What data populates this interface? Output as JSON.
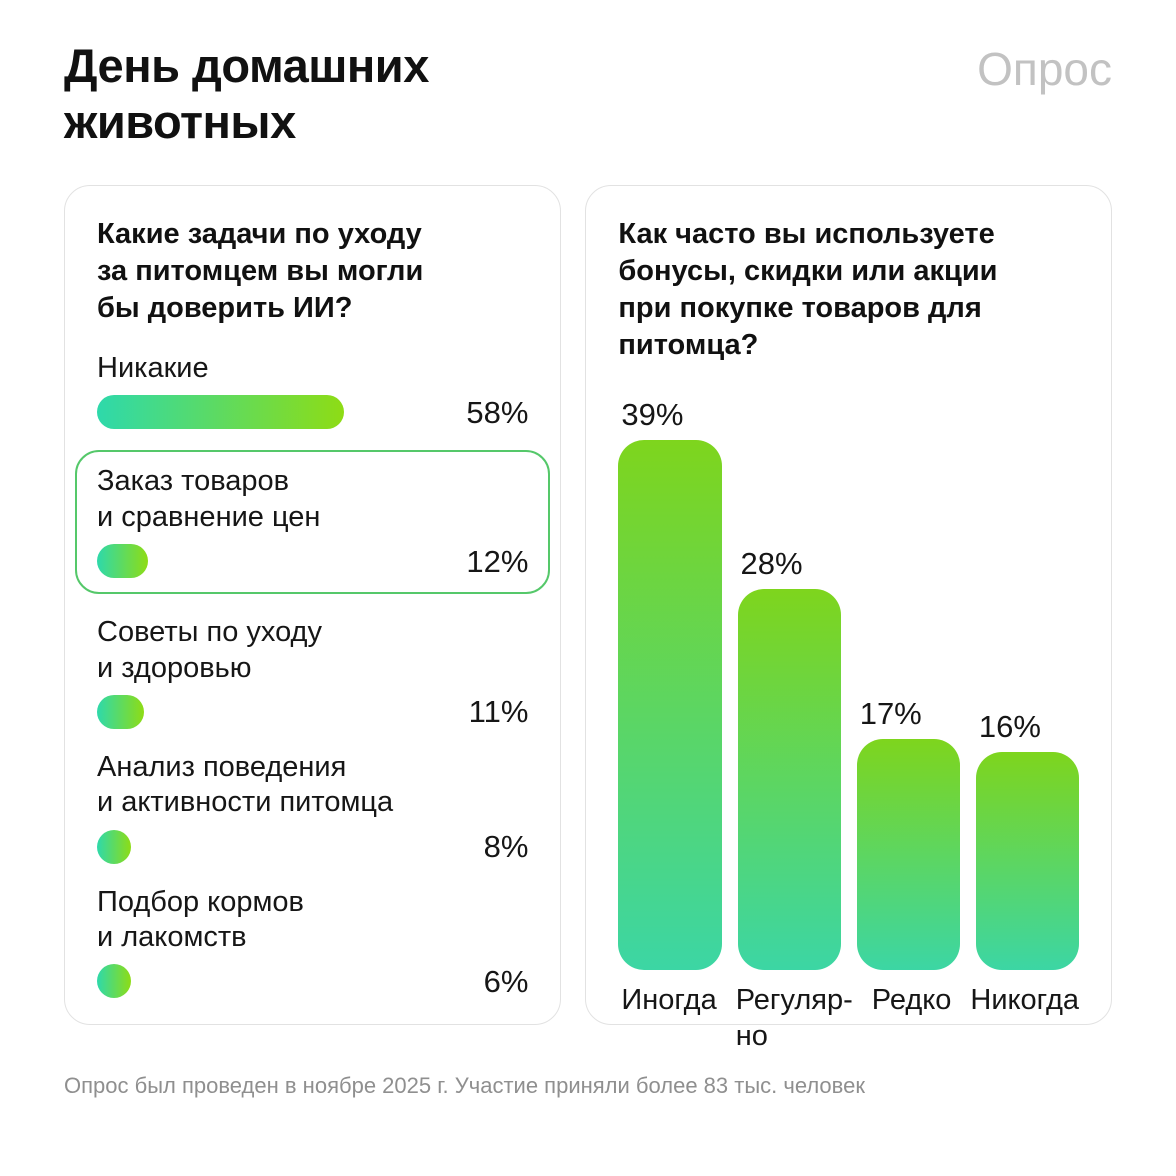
{
  "page": {
    "title": "День домашних\nживотных",
    "watermark": "Опрос",
    "footer": "Опрос был проведен в ноябре 2025 г. Участие приняли более 83 тыс. человек"
  },
  "colors": {
    "accent_gradient_teal": "#2ed9ab",
    "accent_gradient_lime": "#8edc15",
    "highlight_border": "#55c86a",
    "card_border": "#e2e2e2",
    "watermark_gray": "#c2c2c2",
    "footer_gray": "#8f8f8f"
  },
  "left_panel": {
    "heading": "Какие задачи по уходу\nза питомцем вы могли\nбы доверить ИИ?",
    "items": [
      {
        "label": "Никакие",
        "value": 58,
        "display": "58%",
        "highlighted": false
      },
      {
        "label": "Заказ товаров\nи сравнение цен",
        "value": 12,
        "display": "12%",
        "highlighted": true
      },
      {
        "label": "Советы по уходу\nи здоровью",
        "value": 11,
        "display": "11%",
        "highlighted": false
      },
      {
        "label": "Анализ поведения\nи активности питомца",
        "value": 8,
        "display": "8%",
        "highlighted": false
      },
      {
        "label": "Подбор кормов\nи лакомств",
        "value": 6,
        "display": "6%",
        "highlighted": false
      }
    ]
  },
  "right_panel": {
    "heading": "Как часто вы используете\nбонусы, скидки или акции\nпри покупке товаров для\nпитомца?",
    "items": [
      {
        "label": "Иногда",
        "value": 39,
        "display": "39%"
      },
      {
        "label": "Регуляр-\nно",
        "value": 28,
        "display": "28%"
      },
      {
        "label": "Редко",
        "value": 17,
        "display": "17%"
      },
      {
        "label": "Никогда",
        "value": 16,
        "display": "16%"
      }
    ]
  },
  "chart_data": [
    {
      "type": "bar",
      "orientation": "horizontal",
      "title": "Какие задачи по уходу за питомцем вы могли бы доверить ИИ?",
      "categories": [
        "Никакие",
        "Заказ товаров и сравнение цен",
        "Советы по уходу и здоровью",
        "Анализ поведения и активности питомца",
        "Подбор кормов и лакомств"
      ],
      "values": [
        58,
        12,
        11,
        8,
        6
      ],
      "unit": "%",
      "highlighted_category": "Заказ товаров и сравнение цен",
      "value_labels_position": "right",
      "xlim": [
        0,
        58
      ],
      "grid": false,
      "legend": false
    },
    {
      "type": "bar",
      "orientation": "vertical",
      "title": "Как часто вы используете бонусы, скидки или акции при покупке товаров для питомца?",
      "categories": [
        "Иногда",
        "Регулярно",
        "Редко",
        "Никогда"
      ],
      "values": [
        39,
        28,
        17,
        16
      ],
      "unit": "%",
      "value_labels_position": "above",
      "ylim": [
        0,
        42
      ],
      "grid": false,
      "legend": false
    }
  ]
}
